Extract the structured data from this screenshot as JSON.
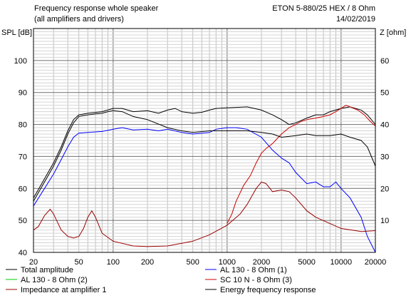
{
  "header": {
    "title_line1": "Frequency response whole speaker",
    "title_line2": "(all amplifiers and drivers)",
    "model": "ETON 5-880/25 HEX / 8 Ohm",
    "date": "14/02/2019"
  },
  "chart_data": {
    "type": "line",
    "title": "Frequency response whole speaker",
    "subtitle": "(all amplifiers and drivers)",
    "xlabel": "",
    "ylabel": "SPL [dB]",
    "y2label": "Z [ohm]",
    "xscale": "log",
    "xlim": [
      20,
      20000
    ],
    "ylim": [
      40,
      110
    ],
    "y2lim": [
      0,
      70
    ],
    "grid": true,
    "legend_position": "bottom",
    "x_tick_labels": [
      "20",
      "50",
      "100",
      "200",
      "500",
      "1000",
      "2000",
      "5000",
      "10000",
      "20000"
    ],
    "y_tick_labels": [
      "40",
      "50",
      "60",
      "70",
      "80",
      "90",
      "100"
    ],
    "y2_tick_labels": [
      "10",
      "20",
      "30",
      "40",
      "50",
      "60"
    ],
    "series": [
      {
        "name": "Total amplitude",
        "color": "#000000",
        "axis": "left",
        "points": [
          [
            20,
            56
          ],
          [
            25,
            62
          ],
          [
            30,
            67
          ],
          [
            35,
            72
          ],
          [
            40,
            77
          ],
          [
            45,
            80.5
          ],
          [
            50,
            82.5
          ],
          [
            60,
            83
          ],
          [
            70,
            83.3
          ],
          [
            80,
            83.5
          ],
          [
            90,
            84
          ],
          [
            100,
            84.3
          ],
          [
            120,
            84
          ],
          [
            150,
            82.5
          ],
          [
            200,
            81.5
          ],
          [
            300,
            79
          ],
          [
            400,
            78
          ],
          [
            500,
            77.5
          ],
          [
            700,
            78
          ],
          [
            1000,
            78
          ],
          [
            1500,
            78
          ],
          [
            2000,
            77.5
          ],
          [
            2500,
            77
          ],
          [
            3000,
            76
          ],
          [
            4000,
            76.5
          ],
          [
            5000,
            77
          ],
          [
            6000,
            76.5
          ],
          [
            8000,
            76.5
          ],
          [
            10000,
            77
          ],
          [
            12000,
            76
          ],
          [
            15000,
            75
          ],
          [
            17000,
            73
          ],
          [
            20000,
            67
          ]
        ]
      },
      {
        "name": "AL 130 - 8 Ohm (1)",
        "color": "#0000ff",
        "axis": "left",
        "points": [
          [
            20,
            54.5
          ],
          [
            25,
            60
          ],
          [
            30,
            64.5
          ],
          [
            35,
            69
          ],
          [
            40,
            73
          ],
          [
            45,
            76
          ],
          [
            50,
            77.3
          ],
          [
            60,
            77.5
          ],
          [
            80,
            77.8
          ],
          [
            100,
            78.5
          ],
          [
            120,
            79
          ],
          [
            150,
            78.3
          ],
          [
            200,
            78.5
          ],
          [
            250,
            78
          ],
          [
            300,
            78.5
          ],
          [
            400,
            77.5
          ],
          [
            500,
            77
          ],
          [
            700,
            77.5
          ],
          [
            800,
            78.5
          ],
          [
            1000,
            79
          ],
          [
            1200,
            79
          ],
          [
            1500,
            78.5
          ],
          [
            2000,
            76
          ],
          [
            2500,
            72
          ],
          [
            3000,
            69.5
          ],
          [
            3500,
            68
          ],
          [
            4000,
            65
          ],
          [
            5000,
            61.5
          ],
          [
            6000,
            62
          ],
          [
            7000,
            60.5
          ],
          [
            8000,
            60.5
          ],
          [
            9000,
            62
          ],
          [
            10000,
            60
          ],
          [
            12000,
            57
          ],
          [
            15000,
            51
          ],
          [
            17000,
            45
          ],
          [
            20000,
            40
          ]
        ]
      },
      {
        "name": "AL 130 - 8 Ohm (2)",
        "color": "#00cc00",
        "axis": "left",
        "points": []
      },
      {
        "name": "SC 10 N - 8 Ohm (3)",
        "color": "#cc0000",
        "axis": "left",
        "points": [
          [
            1000,
            49
          ],
          [
            1100,
            52
          ],
          [
            1200,
            56
          ],
          [
            1400,
            61
          ],
          [
            1600,
            64
          ],
          [
            1800,
            68
          ],
          [
            2000,
            71
          ],
          [
            2200,
            72.5
          ],
          [
            2500,
            74
          ],
          [
            3000,
            77
          ],
          [
            3500,
            79
          ],
          [
            4000,
            80
          ],
          [
            4500,
            81
          ],
          [
            5000,
            81.5
          ],
          [
            6000,
            82
          ],
          [
            7000,
            82.5
          ],
          [
            8000,
            83
          ],
          [
            9000,
            84
          ],
          [
            10000,
            85
          ],
          [
            11000,
            86
          ],
          [
            12000,
            85.5
          ],
          [
            14000,
            84.5
          ],
          [
            16000,
            83
          ],
          [
            18000,
            81
          ],
          [
            20000,
            79.5
          ]
        ]
      },
      {
        "name": "Impedance at amplifier 1",
        "color": "#990000",
        "axis": "right",
        "points": [
          [
            20,
            7
          ],
          [
            22,
            8
          ],
          [
            25,
            11.5
          ],
          [
            28,
            13.5
          ],
          [
            30,
            12
          ],
          [
            35,
            7
          ],
          [
            40,
            5
          ],
          [
            45,
            4.5
          ],
          [
            50,
            5
          ],
          [
            55,
            7.5
          ],
          [
            60,
            11
          ],
          [
            65,
            13
          ],
          [
            70,
            11
          ],
          [
            80,
            6
          ],
          [
            100,
            3.5
          ],
          [
            150,
            2
          ],
          [
            200,
            1.8
          ],
          [
            300,
            2
          ],
          [
            500,
            3.5
          ],
          [
            700,
            5.5
          ],
          [
            1000,
            8.5
          ],
          [
            1300,
            12
          ],
          [
            1500,
            15
          ],
          [
            1800,
            20
          ],
          [
            2000,
            22
          ],
          [
            2200,
            21.5
          ],
          [
            2500,
            19
          ],
          [
            3000,
            19.5
          ],
          [
            3500,
            19
          ],
          [
            4000,
            17
          ],
          [
            5000,
            13
          ],
          [
            6000,
            11
          ],
          [
            8000,
            9
          ],
          [
            10000,
            7.5
          ],
          [
            15000,
            6.5
          ],
          [
            20000,
            6.8
          ]
        ]
      },
      {
        "name": "Energy frequency response",
        "color": "#000000",
        "axis": "left",
        "points": [
          [
            20,
            57
          ],
          [
            25,
            63
          ],
          [
            30,
            68
          ],
          [
            35,
            73
          ],
          [
            40,
            78
          ],
          [
            45,
            81.5
          ],
          [
            50,
            83
          ],
          [
            60,
            83.5
          ],
          [
            80,
            84
          ],
          [
            100,
            85
          ],
          [
            120,
            85
          ],
          [
            150,
            84
          ],
          [
            200,
            84.3
          ],
          [
            250,
            83.5
          ],
          [
            300,
            84.5
          ],
          [
            350,
            85
          ],
          [
            400,
            84
          ],
          [
            500,
            83.5
          ],
          [
            600,
            83.8
          ],
          [
            700,
            84.5
          ],
          [
            800,
            85
          ],
          [
            1000,
            85.2
          ],
          [
            1500,
            85.5
          ],
          [
            2000,
            84.5
          ],
          [
            2500,
            83
          ],
          [
            3000,
            81.5
          ],
          [
            3500,
            80
          ],
          [
            4000,
            80.5
          ],
          [
            5000,
            82
          ],
          [
            6000,
            83
          ],
          [
            7000,
            83
          ],
          [
            8000,
            84
          ],
          [
            10000,
            85
          ],
          [
            12000,
            85.5
          ],
          [
            15000,
            84.5
          ],
          [
            17000,
            83
          ],
          [
            20000,
            80
          ]
        ]
      }
    ]
  }
}
